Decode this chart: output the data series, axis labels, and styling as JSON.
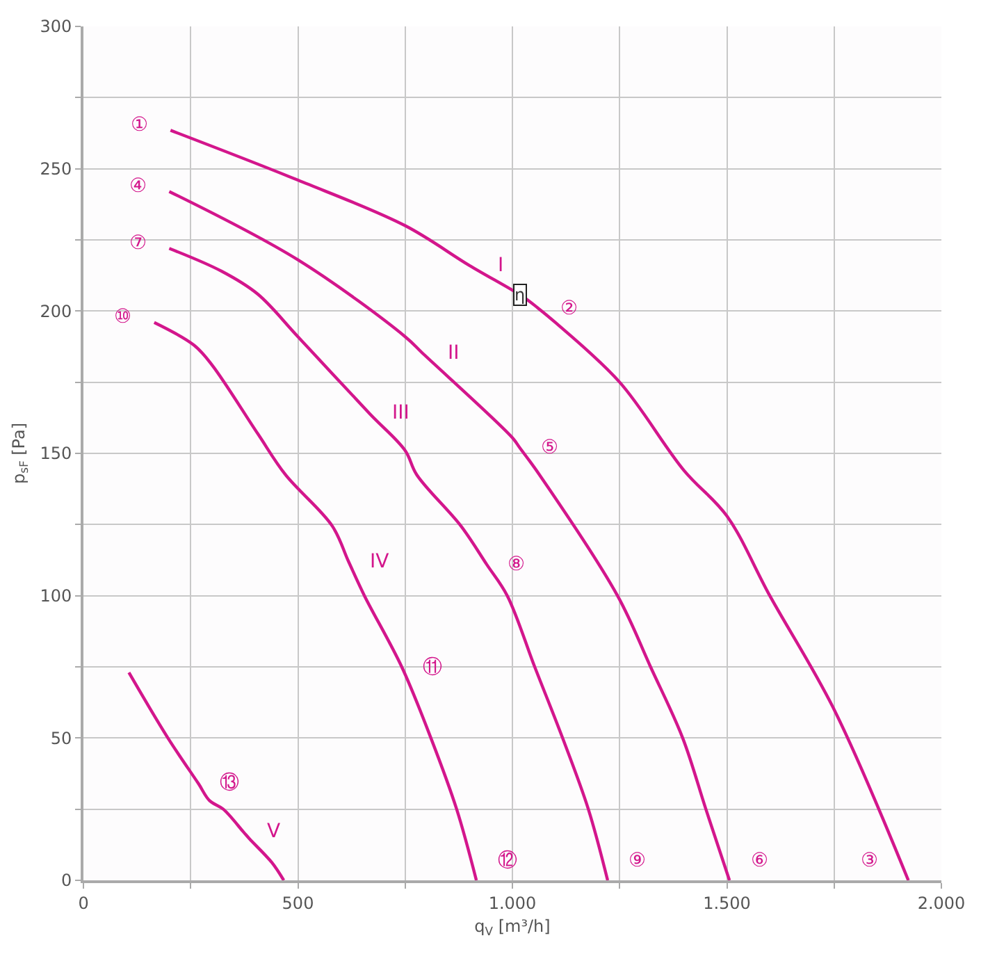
{
  "chart_data": {
    "type": "line",
    "xlabel": "q$_{V}$ [m³/h]",
    "ylabel": "p$_{sF}$ [Pa]",
    "xlim": [
      0,
      2000
    ],
    "ylim": [
      0,
      300
    ],
    "xticks": [
      0,
      {
        "value": 250,
        "label": null
      },
      500,
      {
        "value": 750,
        "label": null
      },
      {
        "value": 1000,
        "label": "1.000"
      },
      {
        "value": 1250,
        "label": null
      },
      {
        "value": 1500,
        "label": "1.500"
      },
      {
        "value": 1750,
        "label": null
      },
      {
        "value": 2000,
        "label": "2.000"
      }
    ],
    "yticks": [
      0,
      {
        "value": 25,
        "label": null
      },
      50,
      {
        "value": 75,
        "label": null
      },
      100,
      {
        "value": 125,
        "label": null
      },
      150,
      {
        "value": 175,
        "label": null
      },
      200,
      {
        "value": 225,
        "label": null
      },
      250,
      {
        "value": 275,
        "label": null
      },
      300
    ],
    "grid": true,
    "marker": "none",
    "line_style": "solid",
    "series": [
      {
        "color": "#d3168c",
        "x": [
          203,
          500,
          750,
          900,
          1025,
          1060,
          1100,
          1250,
          1400,
          1500,
          1600,
          1750,
          1923
        ],
        "values": [
          263.5,
          246,
          230,
          216,
          205,
          201,
          196,
          175,
          144,
          128,
          100,
          60,
          0
        ]
      },
      {
        "color": "#d3168c",
        "x": [
          200,
          500,
          750,
          792,
          1000,
          1017,
          1063,
          1245,
          1322,
          1397,
          1451,
          1506
        ],
        "values": [
          242,
          218,
          191,
          185,
          155.5,
          152,
          142.5,
          100,
          75,
          50,
          25,
          0
        ]
      },
      {
        "color": "#d3168c",
        "x": [
          200,
          322,
          406,
          500,
          667,
          750,
          777,
          880,
          940,
          988,
          1052,
          1117,
          1177,
          1222
        ],
        "values": [
          222,
          214,
          206,
          191,
          164,
          151,
          142.5,
          124.5,
          111,
          100,
          75,
          50,
          25,
          0
        ]
      },
      {
        "color": "#d3168c",
        "x": [
          165,
          258,
          300,
          406,
          471,
          580,
          618,
          655,
          742,
          810,
          870,
          916
        ],
        "values": [
          196,
          188,
          181,
          157,
          142.5,
          124.5,
          112,
          100,
          75,
          50,
          25,
          0
        ]
      },
      {
        "color": "#d3168c",
        "x": [
          106,
          197,
          268,
          294,
          326,
          373,
          387,
          439,
          467
        ],
        "values": [
          73,
          50,
          34,
          28,
          25,
          17,
          14.6,
          6.3,
          0
        ]
      }
    ],
    "annotations": [
      {
        "text": "①",
        "x": 203,
        "y": 263.5
      },
      {
        "text": "②",
        "x": 1060,
        "y": 201
      },
      {
        "text": "③",
        "x": 1923,
        "y": 0
      },
      {
        "text": "④",
        "x": 200,
        "y": 242
      },
      {
        "text": "⑤",
        "x": 1017,
        "y": 152
      },
      {
        "text": "⑥",
        "x": 1506,
        "y": 0
      },
      {
        "text": "⑦",
        "x": 200,
        "y": 222
      },
      {
        "text": "⑧",
        "x": 940,
        "y": 111
      },
      {
        "text": "⑨",
        "x": 1222,
        "y": 0
      },
      {
        "text": "⑩",
        "x": 165,
        "y": 196
      },
      {
        "text": "⑪",
        "x": 742,
        "y": 75
      },
      {
        "text": "⑫",
        "x": 916,
        "y": 0
      },
      {
        "text": "⑬",
        "x": 268,
        "y": 34
      },
      {
        "text": "I",
        "x": 900,
        "y": 216
      },
      {
        "text": "II",
        "x": 792,
        "y": 185
      },
      {
        "text": "III",
        "x": 667,
        "y": 164
      },
      {
        "text": "IV",
        "x": 618,
        "y": 112
      },
      {
        "text": "V",
        "x": 373,
        "y": 17
      },
      {
        "text": "η",
        "x": 1019,
        "y": 205.5
      }
    ]
  }
}
